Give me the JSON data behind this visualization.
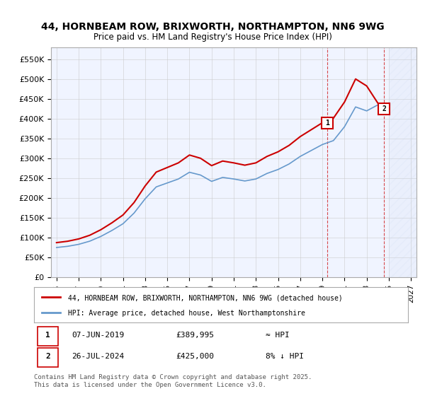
{
  "title_line1": "44, HORNBEAM ROW, BRIXWORTH, NORTHAMPTON, NN6 9WG",
  "title_line2": "Price paid vs. HM Land Registry's House Price Index (HPI)",
  "ylabel_ticks": [
    "£0",
    "£50K",
    "£100K",
    "£150K",
    "£200K",
    "£250K",
    "£300K",
    "£350K",
    "£400K",
    "£450K",
    "£500K",
    "£550K"
  ],
  "ytick_values": [
    0,
    50000,
    100000,
    150000,
    200000,
    250000,
    300000,
    350000,
    400000,
    450000,
    500000,
    550000
  ],
  "ylim": [
    0,
    580000
  ],
  "xlim_start": 1994.5,
  "xlim_end": 2027.5,
  "hpi_color": "#6699cc",
  "price_color": "#cc0000",
  "background_color": "#ffffff",
  "plot_bg_color": "#f0f4ff",
  "hatch_color": "#c8d8f0",
  "grid_color": "#cccccc",
  "sale1_x": 2019.44,
  "sale1_y": 389995,
  "sale1_label": "1",
  "sale2_x": 2024.57,
  "sale2_y": 425000,
  "sale2_label": "2",
  "legend_line1": "44, HORNBEAM ROW, BRIXWORTH, NORTHAMPTON, NN6 9WG (detached house)",
  "legend_line2": "HPI: Average price, detached house, West Northamptonshire",
  "table_row1": [
    "1",
    "07-JUN-2019",
    "£389,995",
    "≈ HPI"
  ],
  "table_row2": [
    "2",
    "26-JUL-2024",
    "£425,000",
    "8% ↓ HPI"
  ],
  "footnote": "Contains HM Land Registry data © Crown copyright and database right 2025.\nThis data is licensed under the Open Government Licence v3.0.",
  "hpi_data_x": [
    1995,
    1996,
    1997,
    1998,
    1999,
    2000,
    2001,
    2002,
    2003,
    2004,
    2005,
    2006,
    2007,
    2008,
    2009,
    2010,
    2011,
    2012,
    2013,
    2014,
    2015,
    2016,
    2017,
    2018,
    2019,
    2020,
    2021,
    2022,
    2023,
    2024,
    2025
  ],
  "hpi_data_y": [
    75000,
    78000,
    83000,
    91000,
    103000,
    118000,
    135000,
    162000,
    198000,
    228000,
    238000,
    248000,
    265000,
    258000,
    242000,
    252000,
    248000,
    243000,
    248000,
    262000,
    272000,
    286000,
    305000,
    320000,
    335000,
    345000,
    380000,
    430000,
    420000,
    435000,
    440000
  ]
}
